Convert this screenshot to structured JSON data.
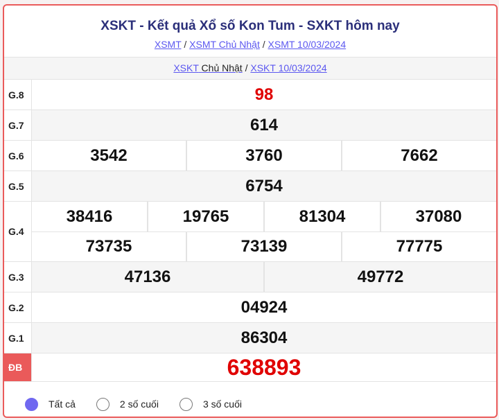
{
  "header": {
    "title": "XSKT - Kết quả Xổ số Kon Tum - SXKT hôm nay",
    "breadcrumbs": [
      "XSMT",
      "XSMT Chủ Nhật",
      "XSMT 10/03/2024"
    ]
  },
  "sub": {
    "link1": "XSKT",
    "day": "Chủ Nhật",
    "link2": "XSKT 10/03/2024"
  },
  "prizes": [
    {
      "label": "G.8",
      "lines": [
        [
          "98"
        ]
      ],
      "red": true
    },
    {
      "label": "G.7",
      "lines": [
        [
          "614"
        ]
      ]
    },
    {
      "label": "G.6",
      "lines": [
        [
          "3542",
          "3760",
          "7662"
        ]
      ]
    },
    {
      "label": "G.5",
      "lines": [
        [
          "6754"
        ]
      ]
    },
    {
      "label": "G.4",
      "lines": [
        [
          "38416",
          "19765",
          "81304",
          "37080"
        ],
        [
          "73735",
          "73139",
          "77775"
        ]
      ]
    },
    {
      "label": "G.3",
      "lines": [
        [
          "47136",
          "49772"
        ]
      ]
    },
    {
      "label": "G.2",
      "lines": [
        [
          "04924"
        ]
      ]
    },
    {
      "label": "G.1",
      "lines": [
        [
          "86304"
        ]
      ]
    },
    {
      "label": "ĐB",
      "lines": [
        [
          "638893"
        ]
      ],
      "red": true
    }
  ],
  "filters": [
    {
      "label": "Tất cả",
      "selected": true
    },
    {
      "label": "2 số cuối",
      "selected": false
    },
    {
      "label": "3 số cuối",
      "selected": false
    }
  ],
  "colors": {
    "accent": "#ea5a5a",
    "title": "#2b2f7a",
    "link": "#5b57f0",
    "red_number": "#e00000",
    "radio_selected": "#7068f0"
  }
}
